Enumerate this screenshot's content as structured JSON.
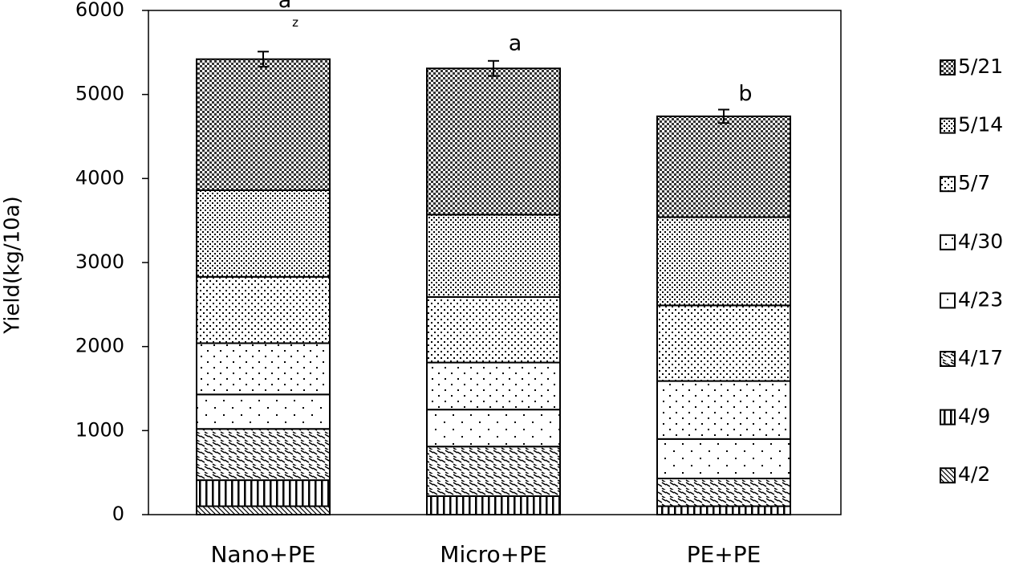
{
  "chart_data": {
    "type": "stacked_bar",
    "y_label": "Yield(kg/10a)",
    "categories": [
      "Nano+PE",
      "Micro+PE",
      "PE+PE"
    ],
    "series": [
      {
        "name": "4/2",
        "color": "#000000",
        "pattern": "diag-fine",
        "values": [
          100,
          0,
          0
        ]
      },
      {
        "name": "4/9",
        "color": "#000000",
        "pattern": "vertical",
        "values": [
          310,
          220,
          100
        ]
      },
      {
        "name": "4/17",
        "color": "#000000",
        "pattern": "diag-dash",
        "values": [
          610,
          590,
          330
        ]
      },
      {
        "name": "4/23",
        "color": "#000000",
        "pattern": "dots-sparse",
        "values": [
          410,
          440,
          470
        ]
      },
      {
        "name": "4/30",
        "color": "#000000",
        "pattern": "dots-light",
        "values": [
          610,
          560,
          690
        ]
      },
      {
        "name": "5/7",
        "color": "#000000",
        "pattern": "dots-medium",
        "values": [
          790,
          780,
          900
        ]
      },
      {
        "name": "5/14",
        "color": "#000000",
        "pattern": "dots-dense",
        "values": [
          1030,
          980,
          1050
        ]
      },
      {
        "name": "5/21",
        "color": "#000000",
        "pattern": "checker",
        "values": [
          1560,
          1740,
          1200
        ]
      }
    ],
    "errors": [
      90,
      90,
      80
    ],
    "significance": [
      "a",
      "a",
      "b"
    ],
    "significance_note": "z",
    "ylim": [
      0,
      6000
    ],
    "yticks": [
      0,
      1000,
      2000,
      3000,
      4000,
      5000,
      6000
    ]
  }
}
